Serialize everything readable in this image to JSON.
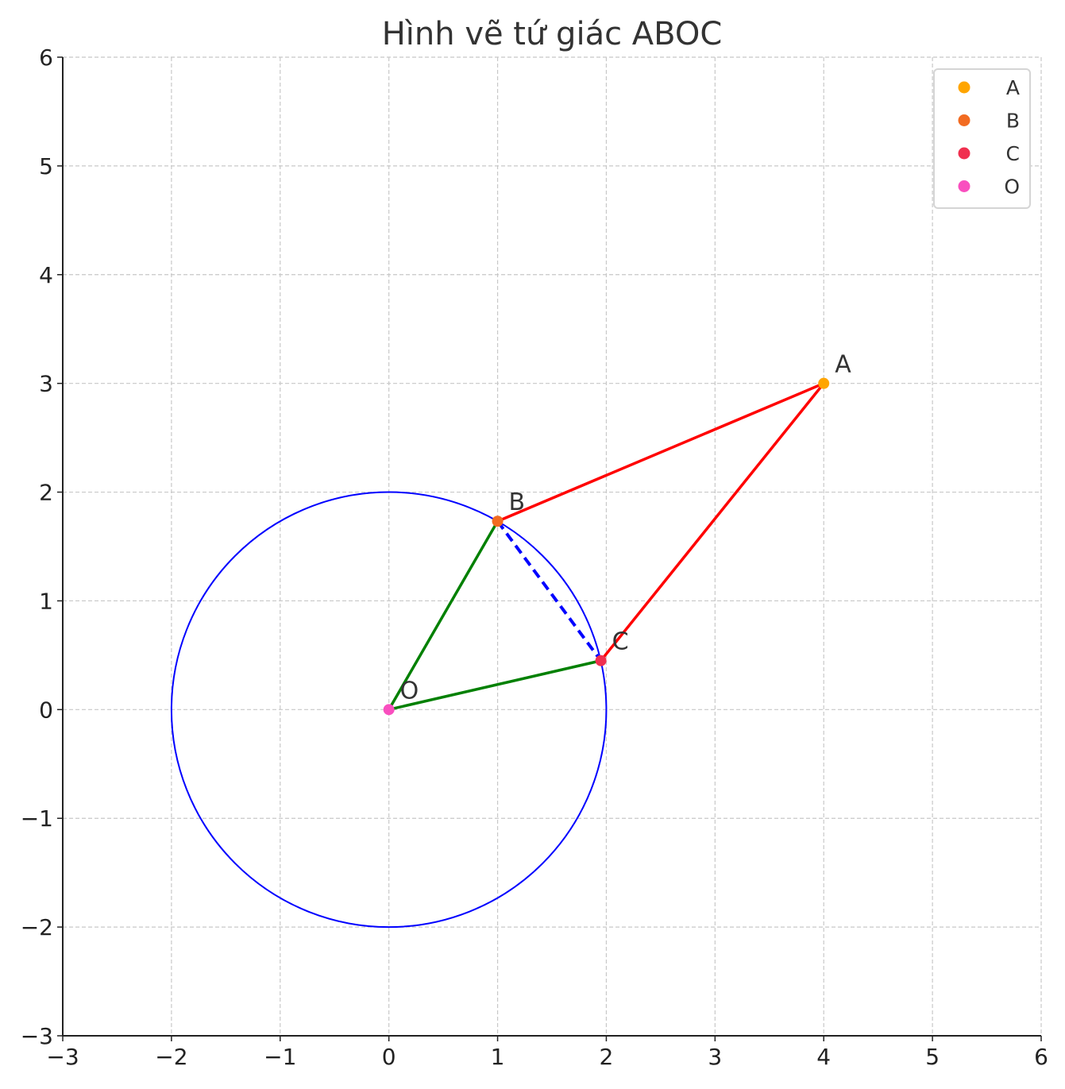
{
  "chart_data": {
    "type": "scatter",
    "title": "Hình vẽ tứ giác ABOC",
    "xlabel": "",
    "ylabel": "",
    "xlim": [
      -3,
      6
    ],
    "ylim": [
      -3,
      6
    ],
    "xticks": [
      -3,
      -2,
      -1,
      0,
      1,
      2,
      3,
      4,
      5,
      6
    ],
    "yticks": [
      -3,
      -2,
      -1,
      0,
      1,
      2,
      3,
      4,
      5,
      6
    ],
    "tick_labels_x": [
      "−3",
      "−2",
      "−1",
      "0",
      "1",
      "2",
      "3",
      "4",
      "5",
      "6"
    ],
    "tick_labels_y": [
      "−3",
      "−2",
      "−1",
      "0",
      "1",
      "2",
      "3",
      "4",
      "5",
      "6"
    ],
    "grid": true,
    "legend": "top-right",
    "points": [
      {
        "name": "A",
        "x": 4,
        "y": 3,
        "color": "#FFA500"
      },
      {
        "name": "B",
        "x": 1,
        "y": 1.732,
        "color": "#F26B21"
      },
      {
        "name": "C",
        "x": 1.95,
        "y": 0.45,
        "color": "#F0304F"
      },
      {
        "name": "O",
        "x": 0,
        "y": 0,
        "color": "#F94FBF"
      }
    ],
    "circle": {
      "center": [
        0,
        0
      ],
      "radius": 2,
      "color": "#0000FF"
    },
    "segments": [
      {
        "from": "A",
        "to": "B",
        "color": "#FF0000",
        "style": "solid"
      },
      {
        "from": "A",
        "to": "C",
        "color": "#FF0000",
        "style": "solid"
      },
      {
        "from": "O",
        "to": "B",
        "color": "#008000",
        "style": "solid"
      },
      {
        "from": "O",
        "to": "C",
        "color": "#008000",
        "style": "solid"
      },
      {
        "from": "B",
        "to": "C",
        "color": "#0000FF",
        "style": "dashed"
      }
    ]
  }
}
